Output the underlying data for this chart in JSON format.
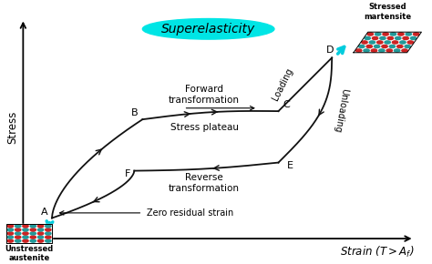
{
  "title": "Superelasticity",
  "xlabel": "Strain ($T > A_f$)",
  "ylabel": "Stress",
  "background_color": "#ffffff",
  "points": {
    "A": [
      0.0,
      0.0
    ],
    "B": [
      0.22,
      0.48
    ],
    "C": [
      0.55,
      0.52
    ],
    "D": [
      0.68,
      0.78
    ],
    "E": [
      0.55,
      0.27
    ],
    "F": [
      0.2,
      0.23
    ]
  },
  "lw": 1.3,
  "loading_color": "#111111",
  "label_fontsize": 7.5,
  "title_fontsize": 10,
  "axis_label_fontsize": 8.5,
  "point_label_fontsize": 8,
  "dot_color1": "#cc2222",
  "dot_color2": "#229999"
}
